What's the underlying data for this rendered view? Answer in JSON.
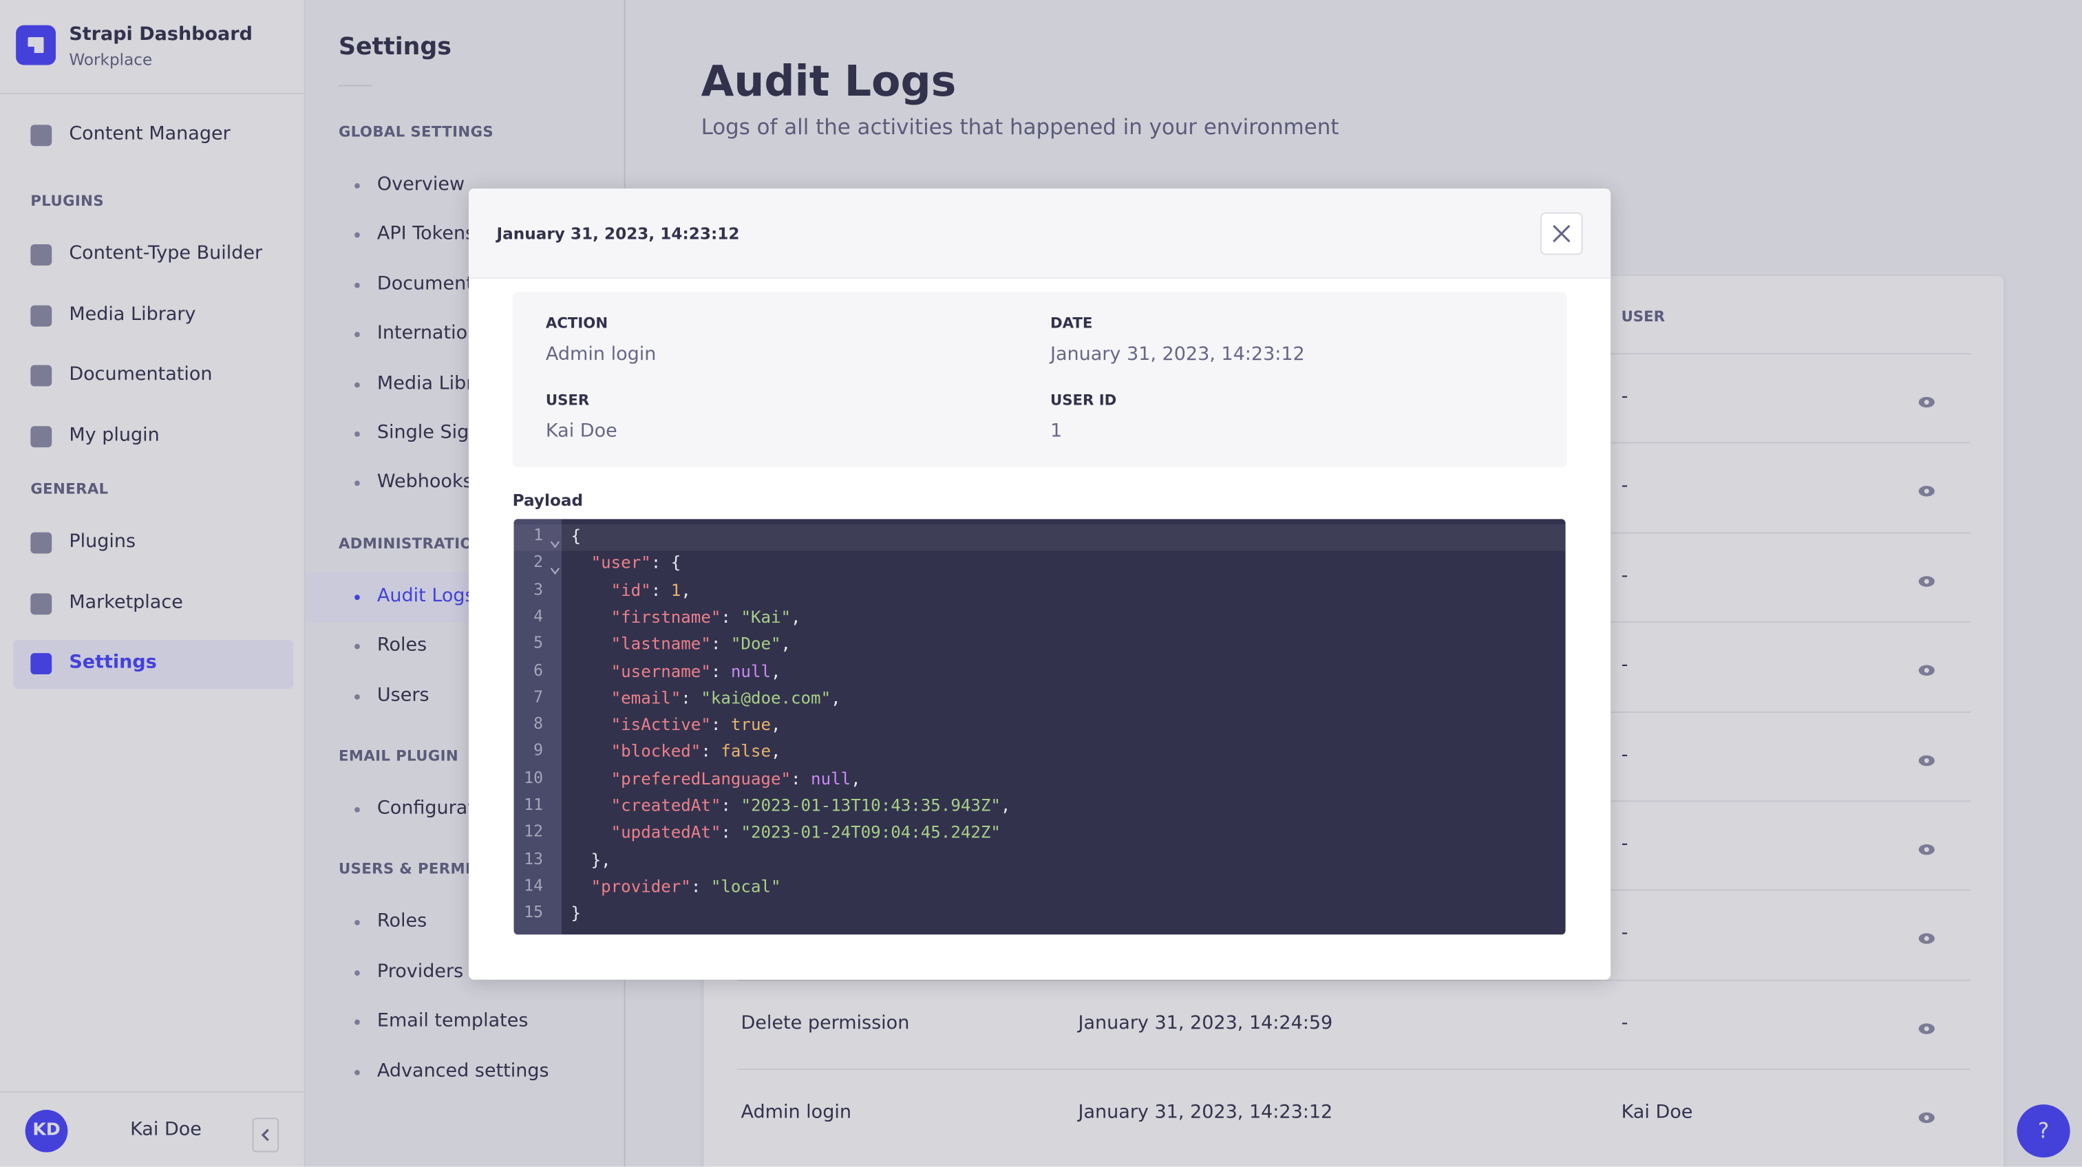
{
  "sidebar": {
    "brand": {
      "title": "Strapi Dashboard",
      "subtitle": "Workplace"
    },
    "items": [
      {
        "label": "Content Manager"
      }
    ],
    "sections": [
      {
        "title": "PLUGINS",
        "items": [
          "Content-Type Builder",
          "Media Library",
          "Documentation",
          "My plugin"
        ]
      },
      {
        "title": "GENERAL",
        "items": [
          "Plugins",
          "Marketplace",
          "Settings"
        ]
      }
    ],
    "user": {
      "initials": "KD",
      "name": "Kai Doe"
    }
  },
  "settings_menu": {
    "title": "Settings",
    "sections": [
      {
        "title": "GLOBAL SETTINGS",
        "items": [
          "Overview",
          "API Tokens",
          "Documentation",
          "Internationalization",
          "Media Library",
          "Single Sign-On",
          "Webhooks"
        ]
      },
      {
        "title": "ADMINISTRATION PANEL",
        "items": [
          "Audit Logs",
          "Roles",
          "Users"
        ]
      },
      {
        "title": "EMAIL PLUGIN",
        "items": [
          "Configuration"
        ]
      },
      {
        "title": "USERS & PERMISSIONS PLUGIN",
        "items": [
          "Roles",
          "Providers",
          "Email templates",
          "Advanced settings"
        ]
      }
    ]
  },
  "header": {
    "title": "Audit Logs",
    "subtitle": "Logs of all the activities that happened in your environment"
  },
  "table": {
    "user_column": "USER",
    "rows": [
      {
        "user": "-"
      },
      {
        "user": "-"
      },
      {
        "user": "-"
      },
      {
        "user": "-"
      },
      {
        "user": "-"
      },
      {
        "user": "-"
      },
      {
        "user": "-"
      },
      {
        "action": "Delete permission",
        "date": "January 31, 2023, 14:24:59",
        "user": "-"
      },
      {
        "action": "Admin login",
        "date": "January 31, 2023, 14:23:12",
        "user": "Kai Doe"
      }
    ]
  },
  "help": "?",
  "modal": {
    "title": "January 31, 2023, 14:23:12",
    "details": [
      {
        "label": "ACTION",
        "value": "Admin login"
      },
      {
        "label": "DATE",
        "value": "January 31, 2023, 14:23:12"
      },
      {
        "label": "USER",
        "value": "Kai Doe"
      },
      {
        "label": "USER ID",
        "value": "1"
      }
    ],
    "payload_label": "Payload",
    "payload": [
      {
        "number": "1",
        "code": "{"
      },
      {
        "number": "2",
        "code": "  \"user\": {"
      },
      {
        "number": "3",
        "code": "    \"id\": 1,"
      },
      {
        "number": "4",
        "code": "    \"firstname\": \"Kai\","
      },
      {
        "number": "5",
        "code": "    \"lastname\": \"Doe\","
      },
      {
        "number": "6",
        "code": "    \"username\": null,"
      },
      {
        "number": "7",
        "code": "    \"email\": \"kai@doe.com\","
      },
      {
        "number": "8",
        "code": "    \"isActive\": true,"
      },
      {
        "number": "9",
        "code": "    \"blocked\": false,"
      },
      {
        "number": "10",
        "code": "    \"preferedLanguage\": null,"
      },
      {
        "number": "11",
        "code": "    \"createdAt\": \"2023-01-13T10:43:35.943Z\","
      },
      {
        "number": "12",
        "code": "    \"updatedAt\": \"2023-01-24T09:04:45.242Z\""
      },
      {
        "number": "13",
        "code": "  },"
      },
      {
        "number": "14",
        "code": "  \"provider\": \"local\""
      },
      {
        "number": "15",
        "code": "}"
      }
    ]
  }
}
